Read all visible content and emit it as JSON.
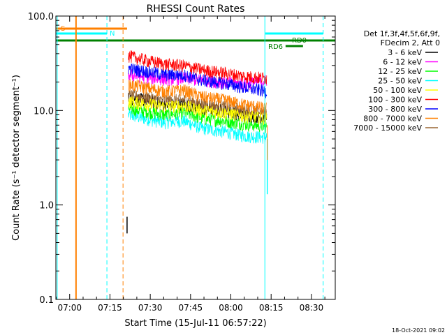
{
  "chart_data": {
    "type": "line",
    "title": "RHESSI Count Rates",
    "xlabel": "Start Time (15-Jul-11 06:57:22)",
    "ylabel": "Count Rate (s⁻¹ detector segment⁻¹)",
    "yscale": "log",
    "ylim": [
      0.1,
      100
    ],
    "xlim_minutes": [
      -2.5,
      101.5
    ],
    "x_ticks": [
      "07:00",
      "07:15",
      "07:30",
      "07:45",
      "08:00",
      "08:15",
      "08:30"
    ],
    "y_ticks": [
      "0.1",
      "1.0",
      "10.0",
      "100.0"
    ],
    "legend_position": "right",
    "legend_header": [
      "Det 1f,3f,4f,5f,6f,9f,",
      "FDecim 2, Att 0"
    ],
    "series": [
      {
        "name": "3 - 6 keV",
        "color": "#000000",
        "values": [
          13.5,
          13.0,
          11.5,
          11.8,
          10.5,
          10.0,
          9.0,
          8.5
        ]
      },
      {
        "name": "6 - 12 keV",
        "color": "#ff00ff",
        "values": [
          24,
          22.5,
          21.5,
          22,
          21,
          20,
          19,
          21
        ]
      },
      {
        "name": "12 - 25 keV",
        "color": "#00ff00",
        "values": [
          10.5,
          9.8,
          9.0,
          9.6,
          8.3,
          7.8,
          7.2,
          6.8
        ]
      },
      {
        "name": "25 - 50 keV",
        "color": "#00ffff",
        "values": [
          9.0,
          8.2,
          7.5,
          7.8,
          6.5,
          6.0,
          5.4,
          5.2
        ]
      },
      {
        "name": "50 - 100 keV",
        "color": "#ffff00",
        "values": [
          12.5,
          11.8,
          11.0,
          11.3,
          10.0,
          9.5,
          8.7,
          8.3
        ]
      },
      {
        "name": "100 - 300 keV",
        "color": "#ff0000",
        "values": [
          38,
          34,
          31,
          30,
          27,
          25,
          23,
          22
        ]
      },
      {
        "name": "300 - 800 keV",
        "color": "#0000ff",
        "values": [
          28,
          26,
          24,
          24,
          21,
          19.5,
          17.5,
          16
        ]
      },
      {
        "name": "800 - 7000 keV",
        "color": "#ff8000",
        "values": [
          19,
          17.5,
          16,
          16.5,
          14,
          13,
          11.5,
          10.5
        ]
      },
      {
        "name": "7000 - 15000 keV",
        "color": "#996633",
        "values": [
          14.5,
          13.8,
          12.8,
          13,
          11.8,
          11.0,
          10.0,
          9.5
        ]
      }
    ],
    "x_minutes": [
      24.5,
      31,
      38,
      45,
      52,
      60,
      68,
      76
    ],
    "flags": [
      {
        "name": "S",
        "color": "#ff8000"
      },
      {
        "name": "N",
        "color": "#00ffff"
      },
      {
        "name": "RD0",
        "color": "#008000"
      },
      {
        "name": "RD6",
        "color": "#008000"
      }
    ],
    "date_stamp": "18-Oct-2021 09:02"
  }
}
